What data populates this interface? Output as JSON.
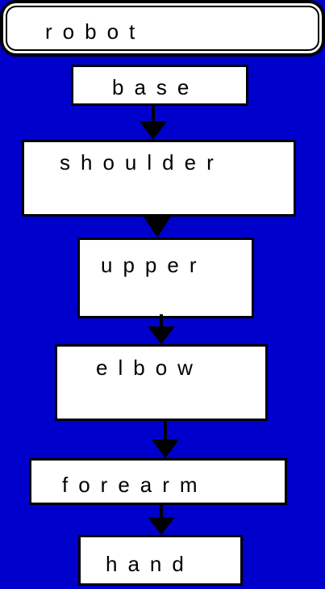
{
  "diagram": {
    "nodes": [
      {
        "id": "robot",
        "label": "robot"
      },
      {
        "id": "base",
        "label": "base"
      },
      {
        "id": "shoulder",
        "label": "shoulder"
      },
      {
        "id": "upper",
        "label": "upper"
      },
      {
        "id": "elbow",
        "label": "elbow"
      },
      {
        "id": "forearm",
        "label": "forearm"
      },
      {
        "id": "hand",
        "label": "hand"
      }
    ],
    "edges": [
      {
        "from": "base",
        "to": "shoulder"
      },
      {
        "from": "shoulder",
        "to": "upper"
      },
      {
        "from": "upper",
        "to": "elbow"
      },
      {
        "from": "elbow",
        "to": "forearm"
      },
      {
        "from": "forearm",
        "to": "hand"
      }
    ],
    "colors": {
      "background": "#0000cc",
      "box": "#ffffff",
      "stroke": "#000000"
    }
  }
}
